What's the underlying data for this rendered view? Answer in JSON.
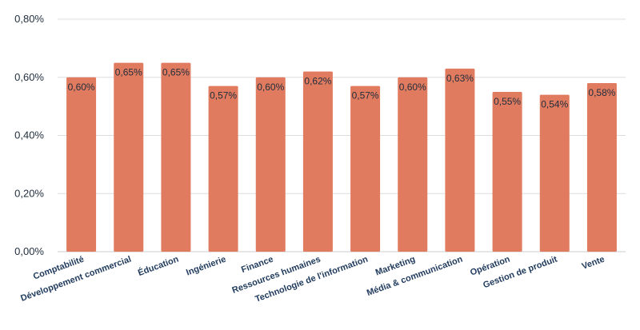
{
  "chart_data": {
    "type": "bar",
    "title": "",
    "xlabel": "",
    "ylabel": "",
    "categories": [
      "Comptabilité",
      "Développement commercial",
      "Éducation",
      "Ingénierie",
      "Finance",
      "Ressources humaines",
      "Technologie de l'information",
      "Marketing",
      "Média & communication",
      "Opération",
      "Gestion de produit",
      "Vente"
    ],
    "values": [
      0.6,
      0.65,
      0.65,
      0.57,
      0.6,
      0.62,
      0.57,
      0.6,
      0.63,
      0.55,
      0.54,
      0.58
    ],
    "value_labels": [
      "0,60%",
      "0,65%",
      "0,65%",
      "0,57%",
      "0,60%",
      "0,62%",
      "0,57%",
      "0,60%",
      "0,63%",
      "0,55%",
      "0,54%",
      "0,58%"
    ],
    "ylim": [
      0,
      0.8
    ],
    "yticks": [
      0,
      0.2,
      0.4,
      0.6,
      0.8
    ],
    "ytick_labels": [
      "0,00%",
      "0,20%",
      "0,40%",
      "0,60%",
      "0,80%"
    ],
    "grid": true,
    "legend": "none",
    "bar_color": "#e07b5f",
    "grid_color": "#dddddd",
    "text_color": "#1f3a5c"
  }
}
